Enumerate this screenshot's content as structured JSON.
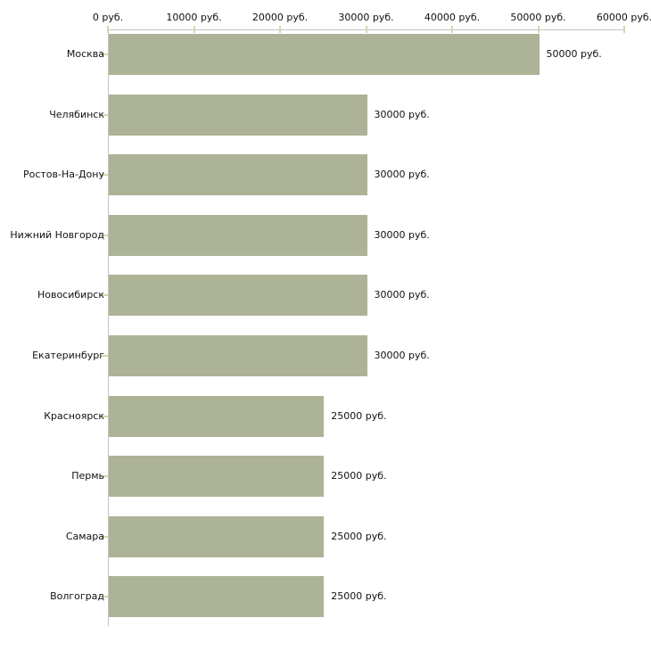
{
  "chart_data": {
    "type": "bar",
    "orientation": "horizontal",
    "title": "",
    "xlabel": "",
    "ylabel": "",
    "unit": "руб.",
    "categories": [
      "Москва",
      "Челябинск",
      "Ростов-На-Дону",
      "Нижний Новгород",
      "Новосибирск",
      "Екатеринбург",
      "Красноярск",
      "Пермь",
      "Самара",
      "Волгоград"
    ],
    "values": [
      50000,
      30000,
      30000,
      30000,
      30000,
      30000,
      25000,
      25000,
      25000,
      25000
    ],
    "value_labels": [
      "50000 руб.",
      "30000 руб.",
      "30000 руб.",
      "30000 руб.",
      "30000 руб.",
      "30000 руб.",
      "25000 руб.",
      "25000 руб.",
      "25000 руб.",
      "25000 руб."
    ],
    "x_ticks": [
      0,
      10000,
      20000,
      30000,
      40000,
      50000,
      60000
    ],
    "x_tick_labels": [
      "0 руб.",
      "10000 руб.",
      "20000 руб.",
      "30000 руб.",
      "40000 руб.",
      "50000 руб.",
      "60000 руб."
    ],
    "xlim": [
      0,
      60000
    ],
    "grid": false,
    "legend": false,
    "axis_position": "top",
    "colors": {
      "bar": "#adb396",
      "axis_line": "#c3c3c3",
      "tick": "#d6d6ad",
      "text": "#111111"
    }
  }
}
